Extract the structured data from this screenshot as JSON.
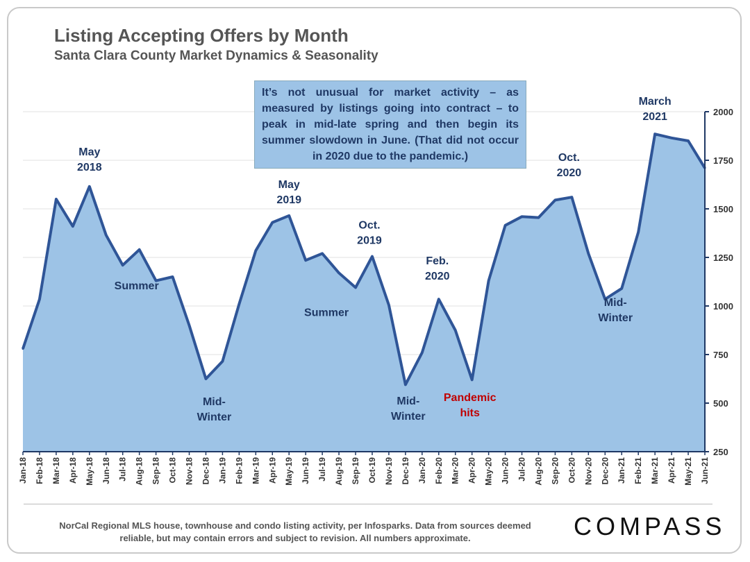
{
  "header": {
    "title": "Listing Accepting Offers by Month",
    "subtitle": "Santa Clara County Market Dynamics & Seasonality"
  },
  "callout": {
    "text": "It’s not unusual for market activity – as measured by listings going into contract – to peak in mid-late spring and then begin its summer slowdown in June. (That did not occur in 2020 due to the pandemic.)"
  },
  "footer": {
    "note": "NorCal Regional MLS house, townhouse and condo listing activity, per Infosparks. Data from sources deemed reliable, but may contain errors and subject to revision. All numbers approximate.",
    "logo": "COMPASS"
  },
  "colors": {
    "area_fill": "#9dc3e6",
    "line": "#2f5597",
    "annotation": "#1f3864",
    "highlight": "#c00000",
    "axis": "#1f3864"
  },
  "chart_data": {
    "type": "area",
    "title": "Listing Accepting Offers by Month",
    "subtitle": "Santa Clara County Market Dynamics & Seasonality",
    "xlabel": "",
    "ylabel": "",
    "ylim": [
      250,
      2000
    ],
    "yticks": [
      250,
      500,
      750,
      1000,
      1250,
      1500,
      1750,
      2000
    ],
    "y_axis_side": "right",
    "grid": true,
    "categories": [
      "Jan-18",
      "Feb-18",
      "Mar-18",
      "Apr-18",
      "May-18",
      "Jun-18",
      "Jul-18",
      "Aug-18",
      "Sep-18",
      "Oct-18",
      "Nov-18",
      "Dec-18",
      "Jan-19",
      "Feb-19",
      "Mar-19",
      "Apr-19",
      "May-19",
      "Jun-19",
      "Jul-19",
      "Aug-19",
      "Sep-19",
      "Oct-19",
      "Nov-19",
      "Dec-19",
      "Jan-20",
      "Feb-20",
      "Mar-20",
      "Apr-20",
      "May-20",
      "Jun-20",
      "Jul-20",
      "Aug-20",
      "Sep-20",
      "Oct-20",
      "Nov-20",
      "Dec-20",
      "Jan-21",
      "Feb-21",
      "Mar-21",
      "Apr-21",
      "May-21",
      "Jun-21"
    ],
    "values": [
      780,
      1035,
      1550,
      1410,
      1615,
      1365,
      1210,
      1290,
      1130,
      1150,
      900,
      625,
      715,
      1010,
      1285,
      1430,
      1465,
      1235,
      1270,
      1170,
      1095,
      1255,
      1005,
      595,
      760,
      1035,
      875,
      620,
      1130,
      1415,
      1460,
      1455,
      1545,
      1560,
      1270,
      1035,
      1090,
      1380,
      1885,
      1865,
      1850,
      1710
    ],
    "annotations": [
      {
        "text": [
          "May",
          "2018"
        ],
        "category": "May-18",
        "color": "annotation"
      },
      {
        "text": [
          "Summer"
        ],
        "category": "Aug-18",
        "color": "annotation"
      },
      {
        "text": [
          "Mid-",
          "Winter"
        ],
        "category": "Jan-19",
        "color": "annotation"
      },
      {
        "text": [
          "May",
          "2019"
        ],
        "category": "May-19",
        "color": "annotation"
      },
      {
        "text": [
          "Summer"
        ],
        "category": "Aug-19",
        "color": "annotation"
      },
      {
        "text": [
          "Oct.",
          "2019"
        ],
        "category": "Oct-19",
        "color": "annotation"
      },
      {
        "text": [
          "Feb.",
          "2020"
        ],
        "category": "Feb-20",
        "color": "annotation"
      },
      {
        "text": [
          "Mid-",
          "Winter"
        ],
        "category": "Jan-20",
        "color": "annotation"
      },
      {
        "text": [
          "Pandemic",
          "hits"
        ],
        "category": "Apr-20",
        "color": "highlight"
      },
      {
        "text": [
          "Oct.",
          "2020"
        ],
        "category": "Oct-20",
        "color": "annotation"
      },
      {
        "text": [
          "Mid-",
          "Winter"
        ],
        "category": "Jan-21",
        "color": "annotation"
      },
      {
        "text": [
          "March",
          "2021"
        ],
        "category": "Mar-21",
        "color": "annotation"
      }
    ]
  }
}
